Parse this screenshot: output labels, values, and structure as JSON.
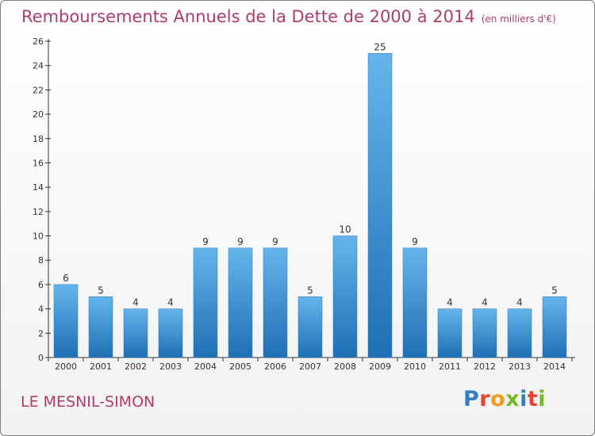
{
  "header": {
    "title": "Remboursements Annuels de la Dette de 2000 à 2014",
    "unit": "(en milliers d'€)"
  },
  "footer": {
    "commune": "LE MESNIL-SIMON",
    "logo_text": "Proxiti",
    "logo_colors": [
      "#2e7fc1",
      "#e8432e",
      "#f39a1f",
      "#7bb72a",
      "#2e7fc1",
      "#e8432e",
      "#7bb72a"
    ]
  },
  "colors": {
    "title": "#b03a6b",
    "bar_top": "#65b5ec",
    "bar_bottom": "#1f6fb5",
    "axis": "#333333"
  },
  "chart_data": {
    "type": "bar",
    "title": "Remboursements Annuels de la Dette de 2000 à 2014",
    "categories": [
      "2000",
      "2001",
      "2002",
      "2003",
      "2004",
      "2005",
      "2006",
      "2007",
      "2008",
      "2009",
      "2010",
      "2011",
      "2012",
      "2013",
      "2014"
    ],
    "values": [
      6,
      5,
      4,
      4,
      9,
      9,
      9,
      5,
      10,
      25,
      9,
      4,
      4,
      4,
      5
    ],
    "ylim": [
      0,
      26
    ],
    "yticks": [
      0,
      2,
      4,
      6,
      8,
      10,
      12,
      14,
      16,
      18,
      20,
      22,
      24,
      26
    ],
    "xlabel": "",
    "ylabel": "",
    "grid": false,
    "data_labels": true
  }
}
